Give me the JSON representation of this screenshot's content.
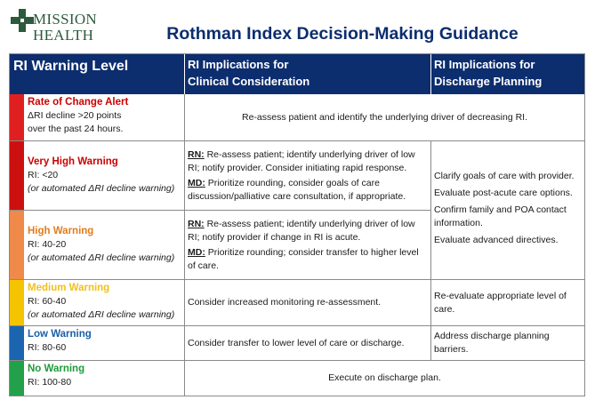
{
  "logo": {
    "line1": "MISSION",
    "line2": "HEALTH",
    "brand_color": "#2d5a3c"
  },
  "title": "Rothman Index Decision-Making Guidance",
  "header": {
    "col1": "RI Warning Level",
    "col2_line1": "RI Implications for",
    "col2_line2": "Clinical Consideration",
    "col3_line1": "RI Implications for",
    "col3_line2": "Discharge Planning",
    "bg_color": "#0c2d6e"
  },
  "rows": [
    {
      "level": "Rate of Change Alert",
      "level_color": "#cc0000",
      "bar_color": "#e02020",
      "range_line1": "ΔRI decline >20  points",
      "range_line2": "over the past 24 hours.",
      "clinical": "Re-assess patient and identify the underlying driver of decreasing RI."
    },
    {
      "level": "Very High Warning",
      "level_color": "#cc0000",
      "bar_color": "#cc1010",
      "range": "RI: <20",
      "note": "(or automated ΔRI decline warning)",
      "rn_label": "RN:",
      "rn_text": " Re-assess patient; identify underlying driver of low RI; notify provider. Consider initiating rapid response.",
      "md_label": "MD:",
      "md_text": " Prioritize rounding, consider goals of care discussion/palliative care consultation, if appropriate."
    },
    {
      "level": "High Warning",
      "level_color": "#e07c1e",
      "bar_color": "#ef8a4a",
      "range": "RI: 40-20",
      "note": "(or automated ΔRI decline warning)",
      "rn_label": "RN:",
      "rn_text": " Re-assess patient; identify underlying driver of low RI; notify provider if change in RI is acute.",
      "md_label": "MD:",
      "md_text": " Prioritize rounding; consider transfer to higher level of care."
    },
    {
      "level": "Medium Warning",
      "level_color": "#f0c020",
      "bar_color": "#f5c400",
      "range": "RI: 60-40",
      "note": "(or automated ΔRI decline warning)",
      "clinical": "Consider increased monitoring re-assessment.",
      "discharge": "Re-evaluate appropriate level of care."
    },
    {
      "level": "Low Warning",
      "level_color": "#1a5fa8",
      "bar_color": "#1a64b0",
      "range": "RI: 80-60",
      "clinical": "Consider transfer to lower level of care or discharge.",
      "discharge": "Address discharge planning barriers."
    },
    {
      "level": "No Warning",
      "level_color": "#1f9a3a",
      "bar_color": "#22a04a",
      "range": "RI: 100-80",
      "clinical": "Execute on discharge plan."
    }
  ],
  "discharge_merged": [
    "Clarify goals of care with provider.",
    "Evaluate post-acute care options.",
    "Confirm family and POA contact information.",
    "Evaluate advanced directives."
  ]
}
